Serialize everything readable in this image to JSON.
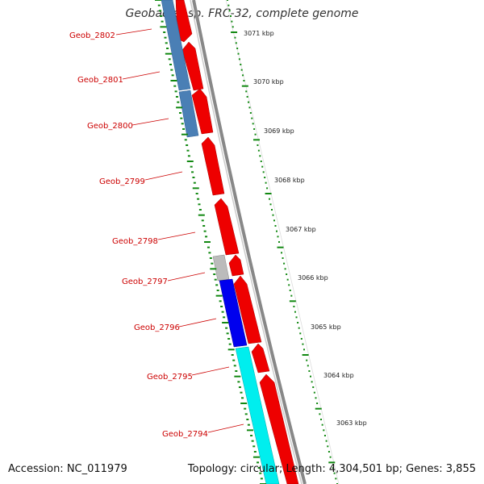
{
  "title": "Geobacter sp. FRC-32, complete genome",
  "footer": {
    "accession": "Accession: NC_011979",
    "summary": "Topology: circular; Length: 4,304,501 bp; Genes: 3,855"
  },
  "colors": {
    "forward_cds": "#ee0000",
    "reverse_cds_steelblue": "#4a7fb5",
    "reverse_cds_blue": "#0000ee",
    "reverse_cds_cyan": "#00eeee",
    "pseudo_gray": "#bbbbbb",
    "backbone": "#888888",
    "gene_label": "#cc0000",
    "tick_green": "#118811"
  },
  "genes": [
    {
      "name": "Geob_2802"
    },
    {
      "name": "Geob_2801"
    },
    {
      "name": "Geob_2800"
    },
    {
      "name": "Geob_2799"
    },
    {
      "name": "Geob_2798"
    },
    {
      "name": "Geob_2797"
    },
    {
      "name": "Geob_2796"
    },
    {
      "name": "Geob_2795"
    },
    {
      "name": "Geob_2794"
    }
  ],
  "scale_ticks": [
    {
      "label": "3071 kbp"
    },
    {
      "label": "3070 kbp"
    },
    {
      "label": "3069 kbp"
    },
    {
      "label": "3068 kbp"
    },
    {
      "label": "3067 kbp"
    },
    {
      "label": "3066 kbp"
    },
    {
      "label": "3065 kbp"
    },
    {
      "label": "3064 kbp"
    },
    {
      "label": "3063 kbp"
    }
  ]
}
